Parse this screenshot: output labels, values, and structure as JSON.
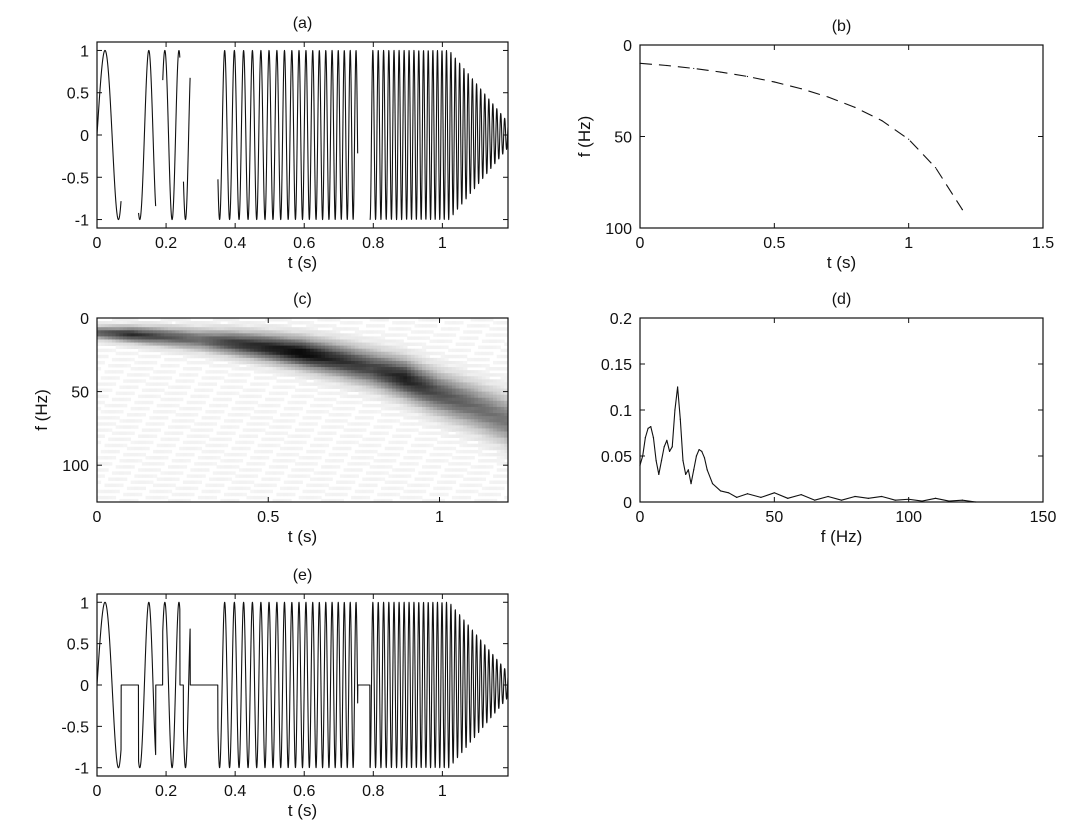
{
  "chart_data": [
    {
      "id": "a",
      "type": "line",
      "title": "(a)",
      "xlabel": "t (s)",
      "ylabel": "",
      "xlim": [
        0,
        1.19
      ],
      "ylim": [
        -1.1,
        1.1
      ],
      "xticks": [
        0,
        0.2,
        0.4,
        0.6,
        0.8,
        1
      ],
      "yticks": [
        -1,
        -0.5,
        0,
        0.5,
        1
      ],
      "xtick_labels": [
        "0",
        "0.2",
        "0.4",
        "0.6",
        "0.8",
        "1"
      ],
      "ytick_labels": [
        "-1",
        "-0.5",
        "0",
        "0.5",
        "1"
      ],
      "signal": {
        "waveform": "chirp",
        "f0_hz": 10,
        "f1_hz": 90,
        "t_end": 1.2,
        "amplitude": 1,
        "gaps_s": [
          [
            0.07,
            0.12
          ],
          [
            0.17,
            0.19
          ],
          [
            0.24,
            0.25
          ],
          [
            0.27,
            0.35
          ],
          [
            0.755,
            0.79
          ]
        ]
      }
    },
    {
      "id": "b",
      "type": "line",
      "title": "(b)",
      "xlabel": "t (s)",
      "ylabel": "f (Hz)",
      "xlim": [
        0,
        1.5
      ],
      "ylim": [
        100,
        0
      ],
      "xticks": [
        0,
        0.5,
        1,
        1.5
      ],
      "yticks": [
        0,
        50,
        100
      ],
      "xtick_labels": [
        "0",
        "0.5",
        "1",
        "1.5"
      ],
      "ytick_labels": [
        "0",
        "50",
        "100"
      ],
      "line_style": "dashed",
      "series": [
        {
          "x": [
            0,
            0.1,
            0.2,
            0.3,
            0.4,
            0.5,
            0.6,
            0.7,
            0.8,
            0.9,
            1.0,
            1.1,
            1.2
          ],
          "y": [
            10,
            11.2,
            12.8,
            14.8,
            17.2,
            20.2,
            23.9,
            28.4,
            34.1,
            41.3,
            51.5,
            67,
            90
          ]
        }
      ]
    },
    {
      "id": "c",
      "type": "heatmap",
      "title": "(c)",
      "xlabel": "t (s)",
      "ylabel": "f (Hz)",
      "xlim": [
        0,
        1.2
      ],
      "ylim": [
        125,
        0
      ],
      "xticks": [
        0,
        0.5,
        1
      ],
      "yticks": [
        0,
        50,
        100
      ],
      "xtick_labels": [
        "0",
        "0.5",
        "1"
      ],
      "ytick_labels": [
        "0",
        "50",
        "100"
      ],
      "colormap": "gray-reversed",
      "ridge": {
        "t": [
          0,
          0.1,
          0.2,
          0.3,
          0.4,
          0.5,
          0.6,
          0.7,
          0.8,
          0.9,
          1.0,
          1.1,
          1.2
        ],
        "f": [
          10,
          11.2,
          12.8,
          14.8,
          17.2,
          20.2,
          23.9,
          28.4,
          34.1,
          41.3,
          51.5,
          60,
          70
        ],
        "intensity": [
          0.6,
          0.8,
          0.65,
          0.55,
          0.75,
          0.85,
          0.95,
          0.8,
          0.7,
          0.85,
          0.65,
          0.55,
          0.5
        ]
      }
    },
    {
      "id": "d",
      "type": "line",
      "title": "(d)",
      "xlabel": "f (Hz)",
      "ylabel": "",
      "xlim": [
        0,
        150
      ],
      "ylim": [
        0,
        0.2
      ],
      "xticks": [
        0,
        50,
        100,
        150
      ],
      "yticks": [
        0,
        0.05,
        0.1,
        0.15,
        0.2
      ],
      "xtick_labels": [
        "0",
        "50",
        "100",
        "150"
      ],
      "ytick_labels": [
        "0",
        "0.05",
        "0.1",
        "0.15",
        "0.2"
      ],
      "series": [
        {
          "x": [
            0,
            1,
            2,
            3,
            4,
            5,
            6,
            7,
            8,
            9,
            10,
            11,
            12,
            13,
            14,
            15,
            16,
            17,
            18,
            19,
            20,
            21,
            22,
            23,
            24,
            25,
            27,
            30,
            33,
            36,
            40,
            45,
            50,
            55,
            60,
            65,
            70,
            75,
            80,
            85,
            90,
            95,
            100,
            105,
            110,
            115,
            120,
            125
          ],
          "y": [
            0.04,
            0.05,
            0.07,
            0.08,
            0.082,
            0.07,
            0.045,
            0.03,
            0.045,
            0.06,
            0.067,
            0.055,
            0.06,
            0.1,
            0.125,
            0.09,
            0.045,
            0.03,
            0.035,
            0.02,
            0.035,
            0.05,
            0.057,
            0.055,
            0.048,
            0.035,
            0.02,
            0.012,
            0.01,
            0.005,
            0.009,
            0.005,
            0.01,
            0.004,
            0.008,
            0.002,
            0.006,
            0.002,
            0.006,
            0.004,
            0.006,
            0.002,
            0.003,
            0.001,
            0.004,
            0.001,
            0.002,
            0.0
          ]
        }
      ]
    },
    {
      "id": "e",
      "type": "line",
      "title": "(e)",
      "xlabel": "t (s)",
      "ylabel": "",
      "xlim": [
        0,
        1.19
      ],
      "ylim": [
        -1.1,
        1.1
      ],
      "xticks": [
        0,
        0.2,
        0.4,
        0.6,
        0.8,
        1
      ],
      "yticks": [
        -1,
        -0.5,
        0,
        0.5,
        1
      ],
      "xtick_labels": [
        "0",
        "0.2",
        "0.4",
        "0.6",
        "0.8",
        "1"
      ],
      "ytick_labels": [
        "-1",
        "-0.5",
        "0",
        "0.5",
        "1"
      ],
      "signal": {
        "waveform": "chirp",
        "f0_hz": 10,
        "f1_hz": 90,
        "t_end": 1.2,
        "amplitude": 1,
        "zero_filled_s": [
          [
            0.07,
            0.12
          ],
          [
            0.17,
            0.19
          ],
          [
            0.24,
            0.25
          ],
          [
            0.27,
            0.35
          ],
          [
            0.755,
            0.79
          ]
        ]
      }
    }
  ]
}
